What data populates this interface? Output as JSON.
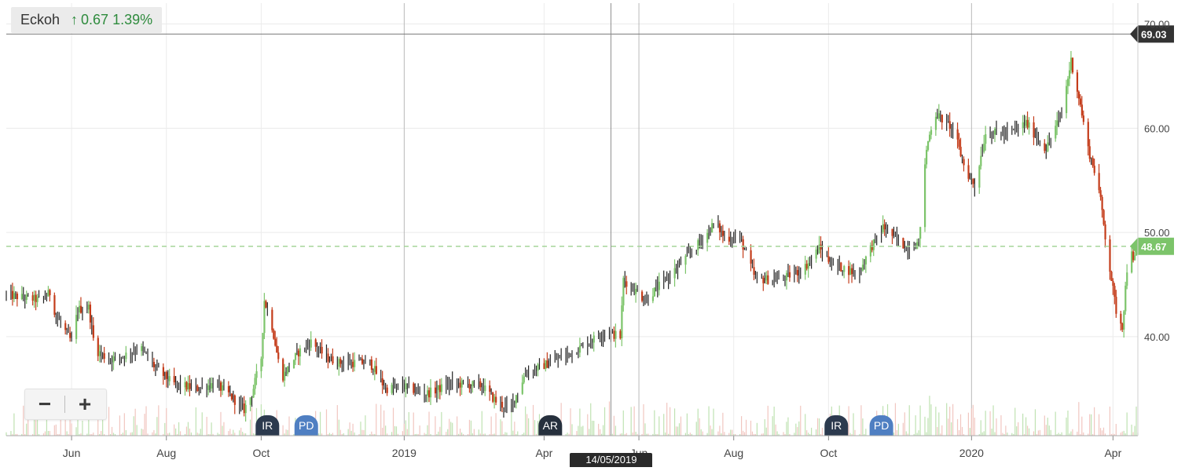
{
  "header": {
    "ticker": "Eckoh",
    "arrow": "↑",
    "change": "0.67",
    "change_pct": "1.39%",
    "change_color": "#2e8b3d"
  },
  "zoom": {
    "minus": "−",
    "plus": "+"
  },
  "crosshair_date": "14/05/2019",
  "chart_data": {
    "type": "candlestick",
    "title": "",
    "xlabel": "",
    "ylabel": "",
    "ylim": [
      30.5,
      72
    ],
    "x_range": [
      "2018-04-20",
      "2020-04-17"
    ],
    "y_ticks": [
      "40.00",
      "50.00",
      "60.00",
      "70.00"
    ],
    "x_ticks": [
      {
        "label": "Jun",
        "date": "2018-06-01"
      },
      {
        "label": "Aug",
        "date": "2018-08-01"
      },
      {
        "label": "Oct",
        "date": "2018-10-01"
      },
      {
        "label": "2019",
        "date": "2019-01-01"
      },
      {
        "label": "Apr",
        "date": "2019-04-01"
      },
      {
        "label": "Jun",
        "date": "2019-06-01"
      },
      {
        "label": "Aug",
        "date": "2019-08-01"
      },
      {
        "label": "Oct",
        "date": "2019-10-01"
      },
      {
        "label": "2020",
        "date": "2020-01-01"
      },
      {
        "label": "Apr",
        "date": "2020-04-01"
      }
    ],
    "current_price": {
      "value": 48.67,
      "label": "48.67",
      "color": "#7cc46a"
    },
    "high_marker": {
      "value": 69.03,
      "label": "69.03",
      "color": "#333333"
    },
    "up_color": "#7cc46a",
    "down_color": "#c43c1a",
    "neutral_color": "#222222",
    "events": [
      {
        "label": "IR",
        "date": "2018-10-05",
        "color": "#2c3a4e"
      },
      {
        "label": "PD",
        "date": "2018-10-30",
        "color": "#4f7fc2"
      },
      {
        "label": "AR",
        "date": "2019-04-05",
        "color": "#26303d"
      },
      {
        "label": "IR",
        "date": "2019-10-06",
        "color": "#2c3a4e"
      },
      {
        "label": "PD",
        "date": "2019-11-04",
        "color": "#4f7fc2"
      }
    ],
    "price_path": [
      [
        "2018-04-20",
        44.0
      ],
      [
        "2018-05-12",
        43.5
      ],
      [
        "2018-05-18",
        44.2
      ],
      [
        "2018-05-22",
        42.0
      ],
      [
        "2018-06-01",
        39.5
      ],
      [
        "2018-06-05",
        42.6
      ],
      [
        "2018-06-12",
        42.8
      ],
      [
        "2018-06-16",
        38.8
      ],
      [
        "2018-06-25",
        37.8
      ],
      [
        "2018-07-05",
        38.2
      ],
      [
        "2018-07-15",
        39.0
      ],
      [
        "2018-07-25",
        37.0
      ],
      [
        "2018-08-05",
        35.5
      ],
      [
        "2018-08-20",
        35.0
      ],
      [
        "2018-09-01",
        35.5
      ],
      [
        "2018-09-10",
        34.5
      ],
      [
        "2018-09-20",
        33.0
      ],
      [
        "2018-09-25",
        34.5
      ],
      [
        "2018-10-01",
        38.0
      ],
      [
        "2018-10-03",
        43.5
      ],
      [
        "2018-10-08",
        41.0
      ],
      [
        "2018-10-14",
        36.0
      ],
      [
        "2018-10-25",
        38.5
      ],
      [
        "2018-11-02",
        39.5
      ],
      [
        "2018-11-12",
        38.0
      ],
      [
        "2018-11-20",
        37.5
      ],
      [
        "2018-12-10",
        37.5
      ],
      [
        "2018-12-20",
        35.0
      ],
      [
        "2019-01-01",
        35.2
      ],
      [
        "2019-01-15",
        34.5
      ],
      [
        "2019-02-01",
        35.5
      ],
      [
        "2019-02-20",
        35.3
      ],
      [
        "2019-03-01",
        33.8
      ],
      [
        "2019-03-10",
        33.0
      ],
      [
        "2019-03-20",
        36.5
      ],
      [
        "2019-03-28",
        37.0
      ],
      [
        "2019-04-12",
        38.0
      ],
      [
        "2019-04-25",
        39.0
      ],
      [
        "2019-05-10",
        40.5
      ],
      [
        "2019-05-20",
        40.0
      ],
      [
        "2019-05-22",
        45.5
      ],
      [
        "2019-06-05",
        43.5
      ],
      [
        "2019-06-15",
        45.0
      ],
      [
        "2019-06-28",
        47.0
      ],
      [
        "2019-07-10",
        49.0
      ],
      [
        "2019-07-20",
        51.0
      ],
      [
        "2019-07-26",
        49.5
      ],
      [
        "2019-08-05",
        49.5
      ],
      [
        "2019-08-15",
        45.5
      ],
      [
        "2019-09-01",
        45.5
      ],
      [
        "2019-09-15",
        46.5
      ],
      [
        "2019-09-25",
        48.5
      ],
      [
        "2019-10-03",
        47.0
      ],
      [
        "2019-10-20",
        46.0
      ],
      [
        "2019-10-28",
        48.5
      ],
      [
        "2019-11-05",
        50.5
      ],
      [
        "2019-11-20",
        48.5
      ],
      [
        "2019-11-28",
        49.0
      ],
      [
        "2019-12-03",
        58.0
      ],
      [
        "2019-12-08",
        61.5
      ],
      [
        "2019-12-20",
        60.0
      ],
      [
        "2019-12-28",
        56.0
      ],
      [
        "2020-01-03",
        54.5
      ],
      [
        "2020-01-10",
        59.5
      ],
      [
        "2020-01-25",
        59.5
      ],
      [
        "2020-02-05",
        60.5
      ],
      [
        "2020-02-18",
        58.0
      ],
      [
        "2020-02-28",
        61.5
      ],
      [
        "2020-03-05",
        66.5
      ],
      [
        "2020-03-10",
        63.0
      ],
      [
        "2020-03-16",
        58.0
      ],
      [
        "2020-03-22",
        55.0
      ],
      [
        "2020-03-25",
        52.0
      ],
      [
        "2020-03-28",
        48.5
      ],
      [
        "2020-04-03",
        42.5
      ],
      [
        "2020-04-07",
        41.0
      ],
      [
        "2020-04-10",
        46.5
      ],
      [
        "2020-04-12",
        50.0
      ],
      [
        "2020-04-14",
        47.0
      ],
      [
        "2020-04-17",
        48.67
      ]
    ]
  }
}
